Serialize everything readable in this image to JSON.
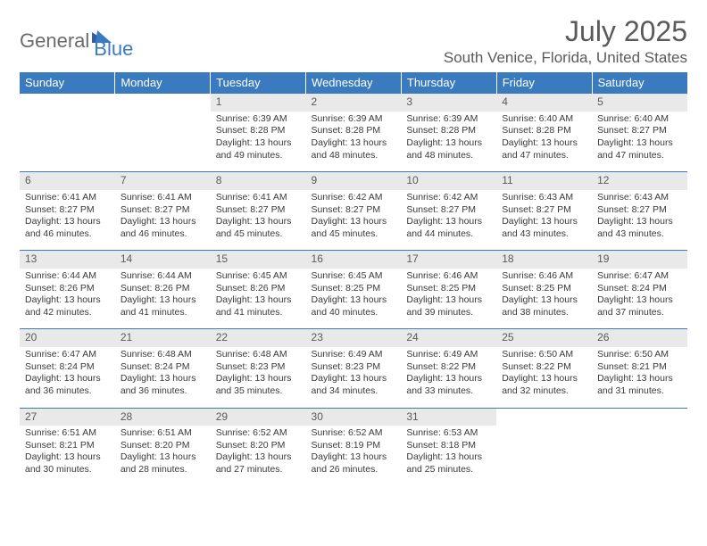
{
  "brand": {
    "word1": "General",
    "word2": "Blue",
    "color_general": "#6b6b6b",
    "color_blue": "#3a7bbf"
  },
  "header": {
    "month_title": "July 2025",
    "location": "South Venice, Florida, United States"
  },
  "style": {
    "header_bg": "#3a7bbf",
    "header_text": "#ffffff",
    "daynum_bg": "#e9e9e9",
    "daynum_text": "#5a5a5a",
    "body_text": "#3a3a3a",
    "rule_color": "#3a7bbf",
    "title_fontsize": 32,
    "location_fontsize": 17,
    "th_fontsize": 13,
    "daynum_fontsize": 12,
    "cell_fontsize": 10.5
  },
  "weekdays": [
    "Sunday",
    "Monday",
    "Tuesday",
    "Wednesday",
    "Thursday",
    "Friday",
    "Saturday"
  ],
  "labels": {
    "sunrise": "Sunrise:",
    "sunset": "Sunset:",
    "daylight": "Daylight:"
  },
  "weeks": [
    [
      null,
      null,
      {
        "n": "1",
        "sunrise": "6:39 AM",
        "sunset": "8:28 PM",
        "daylight": "13 hours and 49 minutes."
      },
      {
        "n": "2",
        "sunrise": "6:39 AM",
        "sunset": "8:28 PM",
        "daylight": "13 hours and 48 minutes."
      },
      {
        "n": "3",
        "sunrise": "6:39 AM",
        "sunset": "8:28 PM",
        "daylight": "13 hours and 48 minutes."
      },
      {
        "n": "4",
        "sunrise": "6:40 AM",
        "sunset": "8:28 PM",
        "daylight": "13 hours and 47 minutes."
      },
      {
        "n": "5",
        "sunrise": "6:40 AM",
        "sunset": "8:27 PM",
        "daylight": "13 hours and 47 minutes."
      }
    ],
    [
      {
        "n": "6",
        "sunrise": "6:41 AM",
        "sunset": "8:27 PM",
        "daylight": "13 hours and 46 minutes."
      },
      {
        "n": "7",
        "sunrise": "6:41 AM",
        "sunset": "8:27 PM",
        "daylight": "13 hours and 46 minutes."
      },
      {
        "n": "8",
        "sunrise": "6:41 AM",
        "sunset": "8:27 PM",
        "daylight": "13 hours and 45 minutes."
      },
      {
        "n": "9",
        "sunrise": "6:42 AM",
        "sunset": "8:27 PM",
        "daylight": "13 hours and 45 minutes."
      },
      {
        "n": "10",
        "sunrise": "6:42 AM",
        "sunset": "8:27 PM",
        "daylight": "13 hours and 44 minutes."
      },
      {
        "n": "11",
        "sunrise": "6:43 AM",
        "sunset": "8:27 PM",
        "daylight": "13 hours and 43 minutes."
      },
      {
        "n": "12",
        "sunrise": "6:43 AM",
        "sunset": "8:27 PM",
        "daylight": "13 hours and 43 minutes."
      }
    ],
    [
      {
        "n": "13",
        "sunrise": "6:44 AM",
        "sunset": "8:26 PM",
        "daylight": "13 hours and 42 minutes."
      },
      {
        "n": "14",
        "sunrise": "6:44 AM",
        "sunset": "8:26 PM",
        "daylight": "13 hours and 41 minutes."
      },
      {
        "n": "15",
        "sunrise": "6:45 AM",
        "sunset": "8:26 PM",
        "daylight": "13 hours and 41 minutes."
      },
      {
        "n": "16",
        "sunrise": "6:45 AM",
        "sunset": "8:25 PM",
        "daylight": "13 hours and 40 minutes."
      },
      {
        "n": "17",
        "sunrise": "6:46 AM",
        "sunset": "8:25 PM",
        "daylight": "13 hours and 39 minutes."
      },
      {
        "n": "18",
        "sunrise": "6:46 AM",
        "sunset": "8:25 PM",
        "daylight": "13 hours and 38 minutes."
      },
      {
        "n": "19",
        "sunrise": "6:47 AM",
        "sunset": "8:24 PM",
        "daylight": "13 hours and 37 minutes."
      }
    ],
    [
      {
        "n": "20",
        "sunrise": "6:47 AM",
        "sunset": "8:24 PM",
        "daylight": "13 hours and 36 minutes."
      },
      {
        "n": "21",
        "sunrise": "6:48 AM",
        "sunset": "8:24 PM",
        "daylight": "13 hours and 36 minutes."
      },
      {
        "n": "22",
        "sunrise": "6:48 AM",
        "sunset": "8:23 PM",
        "daylight": "13 hours and 35 minutes."
      },
      {
        "n": "23",
        "sunrise": "6:49 AM",
        "sunset": "8:23 PM",
        "daylight": "13 hours and 34 minutes."
      },
      {
        "n": "24",
        "sunrise": "6:49 AM",
        "sunset": "8:22 PM",
        "daylight": "13 hours and 33 minutes."
      },
      {
        "n": "25",
        "sunrise": "6:50 AM",
        "sunset": "8:22 PM",
        "daylight": "13 hours and 32 minutes."
      },
      {
        "n": "26",
        "sunrise": "6:50 AM",
        "sunset": "8:21 PM",
        "daylight": "13 hours and 31 minutes."
      }
    ],
    [
      {
        "n": "27",
        "sunrise": "6:51 AM",
        "sunset": "8:21 PM",
        "daylight": "13 hours and 30 minutes."
      },
      {
        "n": "28",
        "sunrise": "6:51 AM",
        "sunset": "8:20 PM",
        "daylight": "13 hours and 28 minutes."
      },
      {
        "n": "29",
        "sunrise": "6:52 AM",
        "sunset": "8:20 PM",
        "daylight": "13 hours and 27 minutes."
      },
      {
        "n": "30",
        "sunrise": "6:52 AM",
        "sunset": "8:19 PM",
        "daylight": "13 hours and 26 minutes."
      },
      {
        "n": "31",
        "sunrise": "6:53 AM",
        "sunset": "8:18 PM",
        "daylight": "13 hours and 25 minutes."
      },
      null,
      null
    ]
  ]
}
